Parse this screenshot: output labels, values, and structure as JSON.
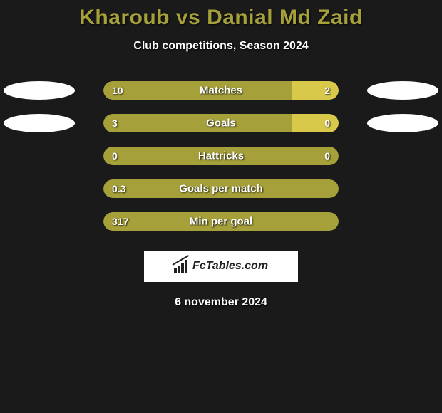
{
  "title": "Kharoub vs Danial Md Zaid",
  "subtitle": "Club competitions, Season 2024",
  "date": "6 november 2024",
  "logo_text": "FcTables.com",
  "colors": {
    "bg": "#1a1a1a",
    "title": "#a6a03a",
    "bar_left": "#a6a03a",
    "bar_right": "#d8c94a",
    "oval": "#ffffff",
    "text": "#ffffff"
  },
  "rows": [
    {
      "label": "Matches",
      "left_val": "10",
      "right_val": "2",
      "left_pct": 80,
      "right_pct": 20,
      "show_ovals": true
    },
    {
      "label": "Goals",
      "left_val": "3",
      "right_val": "0",
      "left_pct": 80,
      "right_pct": 20,
      "show_ovals": true
    },
    {
      "label": "Hattricks",
      "left_val": "0",
      "right_val": "0",
      "left_pct": 100,
      "right_pct": 0,
      "show_ovals": false
    },
    {
      "label": "Goals per match",
      "left_val": "0.3",
      "right_val": "",
      "left_pct": 100,
      "right_pct": 0,
      "show_ovals": false
    },
    {
      "label": "Min per goal",
      "left_val": "317",
      "right_val": "",
      "left_pct": 100,
      "right_pct": 0,
      "show_ovals": false
    }
  ]
}
